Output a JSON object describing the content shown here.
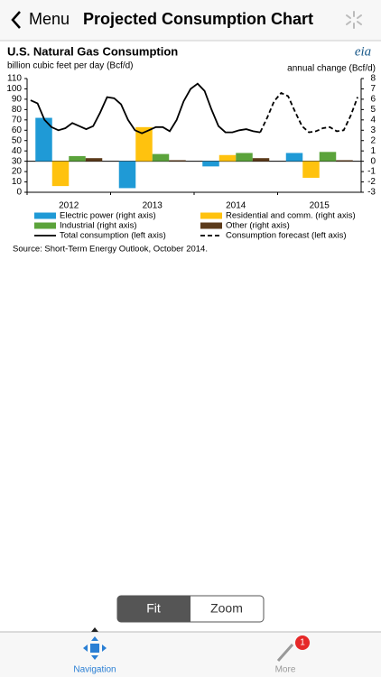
{
  "header": {
    "back": "Menu",
    "title": "Projected Consumption Chart"
  },
  "logo": "eia",
  "chart_data": {
    "type": "bar-line",
    "title": "U.S. Natural Gas Consumption",
    "ylabel": "billion cubic feet per day (Bcf/d)",
    "y2label": "annual change (Bcf/d)",
    "source": "Source: Short-Term Energy Outlook, October 2014.",
    "categories": [
      null,
      null,
      null,
      null,
      null,
      null,
      "2012",
      null,
      null,
      null,
      null,
      null,
      null,
      null,
      null,
      null,
      null,
      null,
      "2013",
      null,
      null,
      null,
      null,
      null,
      null,
      null,
      null,
      null,
      null,
      null,
      "2014",
      null,
      null,
      null,
      null,
      null,
      null,
      null,
      null,
      null,
      null,
      null,
      "2015",
      null,
      null,
      null,
      null,
      null
    ],
    "ylim": [
      0,
      110
    ],
    "yticks": [
      0,
      10,
      20,
      30,
      40,
      50,
      60,
      70,
      80,
      90,
      100,
      110
    ],
    "y2lim": [
      -3,
      8
    ],
    "y2ticks": [
      -3,
      -2,
      -1,
      0,
      1,
      2,
      3,
      4,
      5,
      6,
      7,
      8
    ],
    "series": [
      {
        "name": "Electric power (right axis)",
        "color": "#1f9ad6",
        "axis": "y2",
        "kind": "bar",
        "values": [
          null,
          null,
          null,
          null,
          null,
          null,
          4.2,
          null,
          null,
          null,
          null,
          null,
          null,
          null,
          null,
          null,
          null,
          null,
          -2.6,
          null,
          null,
          null,
          null,
          null,
          null,
          null,
          null,
          null,
          null,
          null,
          -0.5,
          null,
          null,
          null,
          null,
          null,
          null,
          null,
          null,
          null,
          null,
          null,
          0.8,
          null,
          null,
          null,
          null,
          null
        ]
      },
      {
        "name": "Residential and comm. (right axis)",
        "color": "#ffc20e",
        "axis": "y2",
        "kind": "bar",
        "values": [
          null,
          null,
          null,
          null,
          null,
          null,
          -2.4,
          null,
          null,
          null,
          null,
          null,
          null,
          null,
          null,
          null,
          null,
          null,
          3.3,
          null,
          null,
          null,
          null,
          null,
          null,
          null,
          null,
          null,
          null,
          null,
          0.6,
          null,
          null,
          null,
          null,
          null,
          null,
          null,
          null,
          null,
          null,
          null,
          -1.6,
          null,
          null,
          null,
          null,
          null
        ]
      },
      {
        "name": "Industrial (right axis)",
        "color": "#5ba33b",
        "axis": "y2",
        "kind": "bar",
        "values": [
          null,
          null,
          null,
          null,
          null,
          null,
          0.5,
          null,
          null,
          null,
          null,
          null,
          null,
          null,
          null,
          null,
          null,
          null,
          0.7,
          null,
          null,
          null,
          null,
          null,
          null,
          null,
          null,
          null,
          null,
          null,
          0.8,
          null,
          null,
          null,
          null,
          null,
          null,
          null,
          null,
          null,
          null,
          null,
          0.9,
          null,
          null,
          null,
          null,
          null
        ]
      },
      {
        "name": "Other (right axis)",
        "color": "#5b3a1a",
        "axis": "y2",
        "kind": "bar",
        "values": [
          null,
          null,
          null,
          null,
          null,
          null,
          0.3,
          null,
          null,
          null,
          null,
          null,
          null,
          null,
          null,
          null,
          null,
          null,
          0.1,
          null,
          null,
          null,
          null,
          null,
          null,
          null,
          null,
          null,
          null,
          null,
          0.3,
          null,
          null,
          null,
          null,
          null,
          null,
          null,
          null,
          null,
          null,
          null,
          0.1,
          null,
          null,
          null,
          null,
          null
        ]
      },
      {
        "name": "Total consumption (left axis)",
        "color": "#000000",
        "axis": "y",
        "kind": "line",
        "dashed": false,
        "values": [
          89,
          86,
          70,
          63,
          60,
          62,
          67,
          64,
          61,
          64,
          77,
          92,
          91,
          85,
          70,
          60,
          57,
          60,
          63,
          63,
          59,
          70,
          88,
          100,
          105,
          98,
          80,
          64,
          58,
          58,
          60,
          61,
          59,
          58,
          null,
          null,
          null,
          null,
          null,
          null,
          null,
          null,
          null,
          null,
          null,
          null,
          null,
          null
        ]
      },
      {
        "name": "Consumption forecast (left axis)",
        "color": "#000000",
        "axis": "y",
        "kind": "line",
        "dashed": true,
        "values": [
          null,
          null,
          null,
          null,
          null,
          null,
          null,
          null,
          null,
          null,
          null,
          null,
          null,
          null,
          null,
          null,
          null,
          null,
          null,
          null,
          null,
          null,
          null,
          null,
          null,
          null,
          null,
          null,
          null,
          null,
          null,
          null,
          null,
          58,
          72,
          88,
          96,
          93,
          78,
          64,
          58,
          59,
          62,
          63,
          59,
          60,
          74,
          92
        ]
      }
    ]
  },
  "controls": {
    "fit": "Fit",
    "zoom": "Zoom"
  },
  "tabs": {
    "navigation": "Navigation",
    "more": "More",
    "badge": "1"
  }
}
